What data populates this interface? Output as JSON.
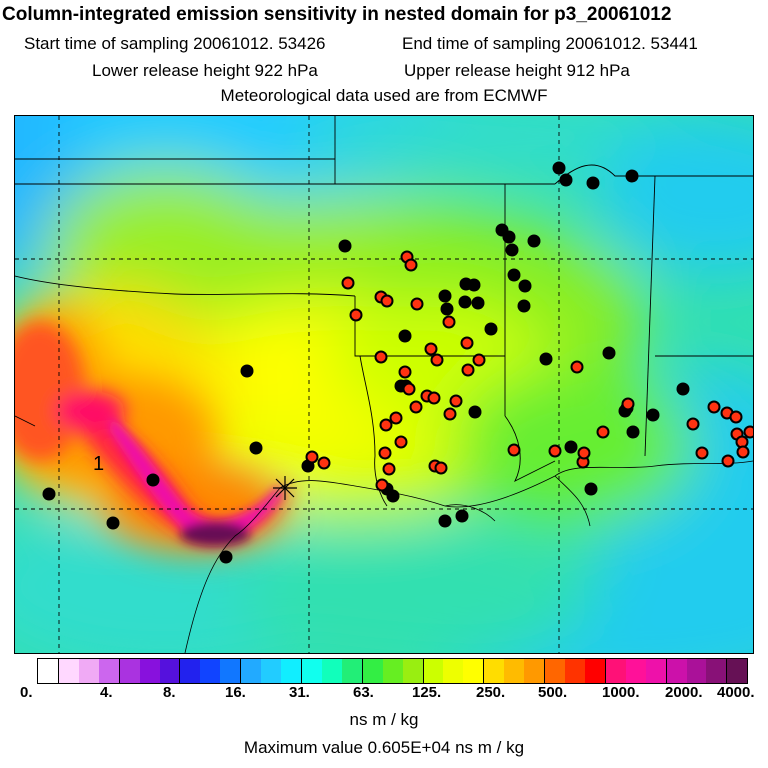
{
  "header": {
    "title": "Column-integrated emission sensitivity in nested domain for p3_20061012",
    "start_label": "Start time of sampling 20061012. 53426",
    "end_label": "End time of sampling 20061012. 53441",
    "lower_label": "Lower release height  922 hPa",
    "upper_label": "Upper release height  912 hPa",
    "met_label": "Meteorological data used are from ECMWF"
  },
  "map": {
    "marker_label": "1",
    "marker_kind": "release-point-star"
  },
  "colorbar": {
    "colors": [
      "#ffffff",
      "#ffd8ff",
      "#f0aaf5",
      "#cc66ee",
      "#aa33e0",
      "#8811dd",
      "#5511dd",
      "#2222ee",
      "#1144ff",
      "#1177ff",
      "#22aaff",
      "#22ccff",
      "#11eeff",
      "#11ffee",
      "#11ffbb",
      "#22ee77",
      "#33ee44",
      "#66ee22",
      "#99ee11",
      "#ccff00",
      "#eeff00",
      "#ffff00",
      "#ffdd00",
      "#ffbb00",
      "#ff9900",
      "#ff6600",
      "#ff3300",
      "#ff0000",
      "#ff1177",
      "#ff1199",
      "#ee11aa",
      "#cc11aa",
      "#aa1199",
      "#881177",
      "#661155"
    ],
    "tick_labels": [
      "0.",
      "4.",
      "8.",
      "16.",
      "31.",
      "63.",
      "125.",
      "250.",
      "500.",
      "1000.",
      "2000.",
      "4000."
    ],
    "units": "ns m / kg"
  },
  "footer": {
    "max_value": "Maximum value  0.605E+04 ns m / kg"
  }
}
